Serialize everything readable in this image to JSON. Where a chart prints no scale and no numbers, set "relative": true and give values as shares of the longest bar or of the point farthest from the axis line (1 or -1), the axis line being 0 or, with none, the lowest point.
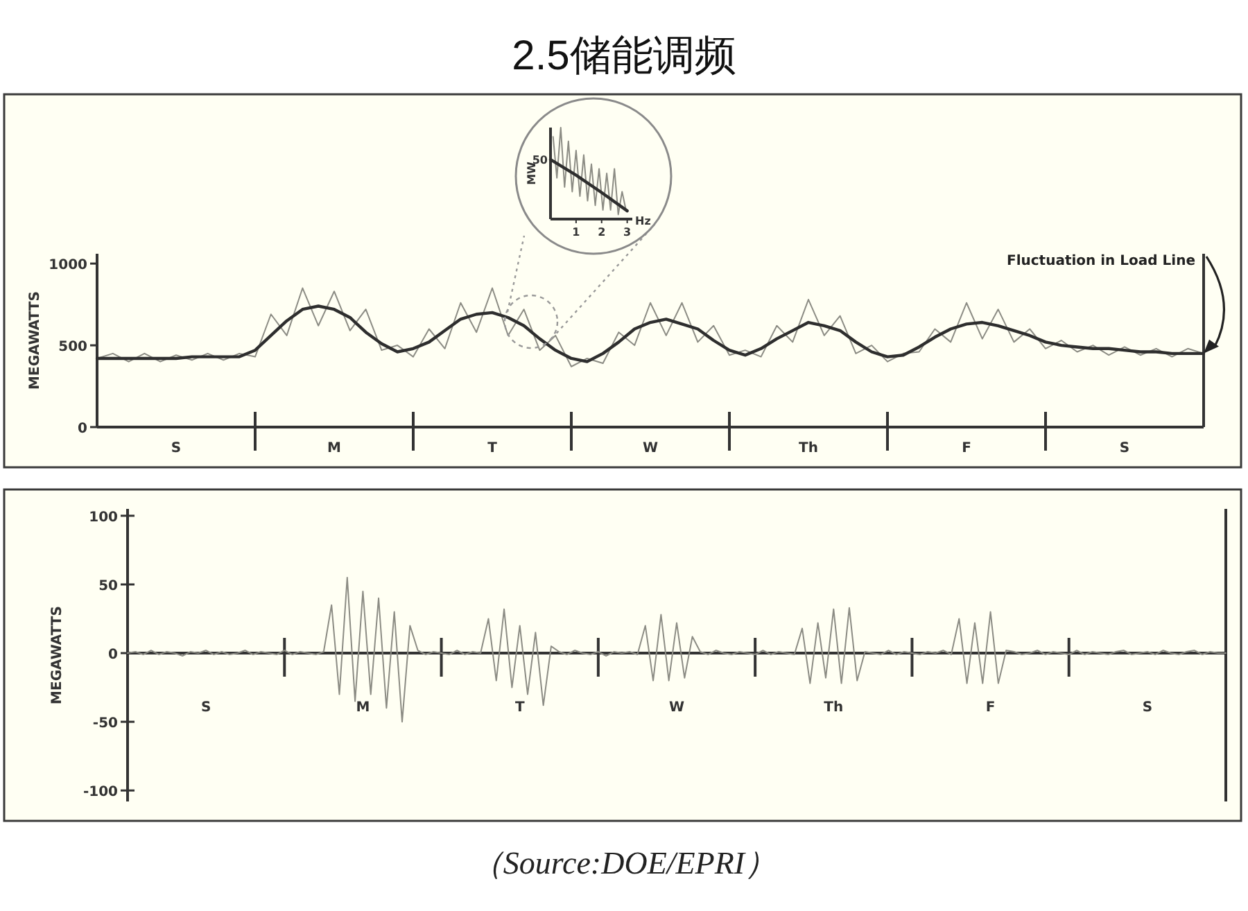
{
  "chart_data": [
    {
      "type": "line",
      "ylabel": "MEGAWATTS",
      "ylim": [
        0,
        1060
      ],
      "yticks": [
        0,
        500,
        1000
      ],
      "categories": [
        null,
        null,
        null,
        null,
        null,
        "S",
        null,
        null,
        null,
        null,
        null,
        null,
        null,
        null,
        null,
        "M",
        null,
        null,
        null,
        null,
        null,
        null,
        null,
        null,
        null,
        "T",
        null,
        null,
        null,
        null,
        null,
        null,
        null,
        null,
        null,
        "W",
        null,
        null,
        null,
        null,
        null,
        null,
        null,
        null,
        null,
        "Th",
        null,
        null,
        null,
        null,
        null,
        null,
        null,
        null,
        null,
        "F",
        null,
        null,
        null,
        null,
        null,
        null,
        null,
        null,
        null,
        "S",
        null,
        null,
        null,
        null,
        null
      ],
      "series": [
        {
          "color": "#8c8c84",
          "values": [
            420,
            450,
            400,
            450,
            400,
            440,
            410,
            450,
            410,
            450,
            430,
            690,
            560,
            850,
            620,
            830,
            590,
            720,
            470,
            500,
            430,
            600,
            480,
            760,
            580,
            850,
            560,
            720,
            470,
            560,
            370,
            420,
            390,
            580,
            500,
            760,
            560,
            760,
            520,
            620,
            440,
            470,
            430,
            620,
            520,
            780,
            560,
            680,
            450,
            500,
            400,
            450,
            460,
            600,
            520,
            760,
            540,
            720,
            520,
            600,
            480,
            530,
            460,
            500,
            440,
            490,
            440,
            480,
            430,
            480,
            450
          ]
        },
        {
          "color": "#2e2e2e",
          "values": [
            420,
            420,
            420,
            420,
            420,
            420,
            430,
            430,
            430,
            430,
            470,
            560,
            650,
            720,
            740,
            720,
            670,
            580,
            510,
            460,
            480,
            520,
            590,
            660,
            690,
            700,
            670,
            620,
            540,
            470,
            420,
            400,
            450,
            520,
            600,
            640,
            660,
            630,
            600,
            530,
            470,
            440,
            480,
            540,
            590,
            640,
            620,
            590,
            520,
            460,
            430,
            440,
            490,
            550,
            600,
            630,
            640,
            620,
            590,
            560,
            520,
            500,
            490,
            480,
            480,
            470,
            460,
            460,
            450,
            450,
            450
          ]
        }
      ],
      "annotations": [
        "2.5储能调频",
        "Fluctuation in Load Line"
      ]
    },
    {
      "type": "line",
      "relative": true,
      "xlabel": "Hz",
      "ylabel": "MW",
      "xlim": [
        0,
        3.2
      ],
      "xticks": [
        1,
        2,
        3
      ],
      "series": [
        {
          "color": "#8c8c84",
          "x": [
            0.1,
            0.25,
            0.4,
            0.55,
            0.7,
            0.85,
            1.0,
            1.15,
            1.3,
            1.45,
            1.6,
            1.75,
            1.9,
            2.05,
            2.2,
            2.35,
            2.5,
            2.65,
            2.8,
            2.95
          ],
          "values": [
            0.9,
            0.45,
            1.0,
            0.35,
            0.85,
            0.3,
            0.75,
            0.25,
            0.7,
            0.2,
            0.6,
            0.15,
            0.55,
            0.1,
            0.5,
            0.1,
            0.55,
            0.05,
            0.3,
            0.1
          ]
        },
        {
          "color": "#2e2e2e",
          "x": [
            0,
            1,
            2,
            3
          ],
          "values": [
            0.65,
            0.48,
            0.29,
            0.09
          ]
        }
      ],
      "annotations": [
        {
          "text": "50",
          "x": 0,
          "y": 0.65
        }
      ]
    },
    {
      "type": "line",
      "ylabel": "MEGAWATTS",
      "ylim": [
        -108,
        105
      ],
      "yticks": [
        -100,
        -50,
        0,
        50,
        100
      ],
      "categories": [
        null,
        null,
        null,
        null,
        null,
        null,
        null,
        null,
        null,
        null,
        "S",
        null,
        null,
        null,
        null,
        null,
        null,
        null,
        null,
        null,
        null,
        null,
        null,
        null,
        null,
        null,
        null,
        null,
        null,
        null,
        "M",
        null,
        null,
        null,
        null,
        null,
        null,
        null,
        null,
        null,
        null,
        null,
        null,
        null,
        null,
        null,
        null,
        null,
        null,
        null,
        "T",
        null,
        null,
        null,
        null,
        null,
        null,
        null,
        null,
        null,
        null,
        null,
        null,
        null,
        null,
        null,
        null,
        null,
        null,
        null,
        "W",
        null,
        null,
        null,
        null,
        null,
        null,
        null,
        null,
        null,
        null,
        null,
        null,
        null,
        null,
        null,
        null,
        null,
        null,
        null,
        "Th",
        null,
        null,
        null,
        null,
        null,
        null,
        null,
        null,
        null,
        null,
        null,
        null,
        null,
        null,
        null,
        null,
        null,
        null,
        null,
        "F",
        null,
        null,
        null,
        null,
        null,
        null,
        null,
        null,
        null,
        null,
        null,
        null,
        null,
        null,
        null,
        null,
        null,
        null,
        null,
        "S",
        null,
        null,
        null,
        null,
        null,
        null,
        null,
        null,
        null,
        null
      ],
      "series": [
        {
          "color": "#8c8c84",
          "values": [
            0,
            1,
            -1,
            2,
            -1,
            1,
            0,
            -2,
            1,
            0,
            2,
            -1,
            1,
            -1,
            0,
            2,
            -1,
            1,
            0,
            -1,
            2,
            -1,
            1,
            0,
            -1,
            1,
            35,
            -30,
            55,
            -35,
            45,
            -30,
            40,
            -40,
            30,
            -50,
            20,
            2,
            -1,
            1,
            0,
            -1,
            2,
            -1,
            1,
            0,
            25,
            -20,
            32,
            -25,
            20,
            -30,
            15,
            -38,
            5,
            1,
            -1,
            2,
            0,
            -1,
            1,
            -2,
            1,
            0,
            1,
            -1,
            20,
            -20,
            28,
            -20,
            22,
            -18,
            12,
            1,
            -1,
            2,
            0,
            -1,
            1,
            0,
            -1,
            2,
            -1,
            1,
            0,
            -1,
            18,
            -22,
            22,
            -18,
            32,
            -22,
            33,
            -20,
            1,
            0,
            -1,
            2,
            -1,
            1,
            0,
            -1,
            1,
            0,
            2,
            -1,
            25,
            -22,
            22,
            -22,
            30,
            -22,
            2,
            1,
            -1,
            0,
            2,
            -1,
            1,
            0,
            -1,
            2,
            -1,
            1,
            0,
            -1,
            1,
            2,
            -1,
            0,
            1,
            -1,
            2,
            0,
            -1,
            1,
            2,
            -1,
            1,
            0,
            0
          ]
        }
      ],
      "annotations": [
        "（Source:DOE/EPRI）"
      ]
    }
  ]
}
